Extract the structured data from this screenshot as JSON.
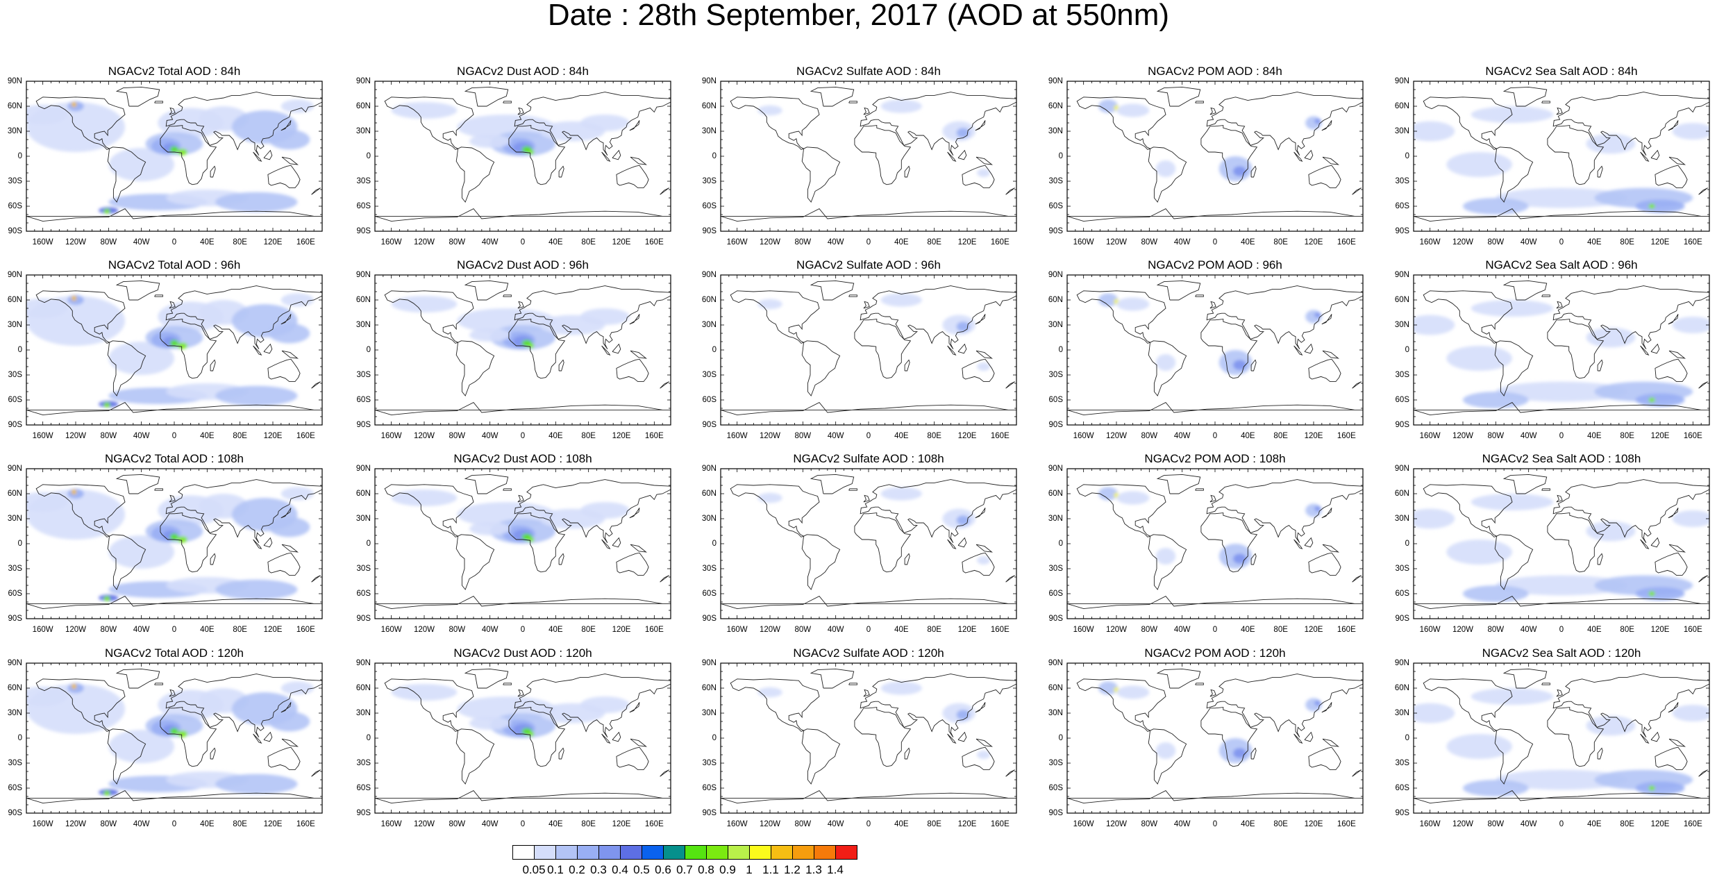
{
  "title": "Date : 28th September, 2017 (AOD at 550nm)",
  "lat_labels": [
    "90N",
    "60N",
    "30N",
    "0",
    "30S",
    "60S",
    "90S"
  ],
  "lon_labels": [
    "160W",
    "120W",
    "80W",
    "40W",
    "0",
    "40E",
    "80E",
    "120E",
    "160E"
  ],
  "panels": [
    {
      "title": "NGACv2 Total AOD : 84h",
      "species": "total"
    },
    {
      "title": "NGACv2 Dust AOD : 84h",
      "species": "dust"
    },
    {
      "title": "NGACv2 Sulfate AOD : 84h",
      "species": "sulfate"
    },
    {
      "title": "NGACv2 POM AOD : 84h",
      "species": "pom"
    },
    {
      "title": "NGACv2 Sea Salt AOD : 84h",
      "species": "seasalt"
    },
    {
      "title": "NGACv2 Total AOD : 96h",
      "species": "total"
    },
    {
      "title": "NGACv2 Dust AOD : 96h",
      "species": "dust"
    },
    {
      "title": "NGACv2 Sulfate AOD : 96h",
      "species": "sulfate"
    },
    {
      "title": "NGACv2 POM AOD : 96h",
      "species": "pom"
    },
    {
      "title": "NGACv2 Sea Salt AOD : 96h",
      "species": "seasalt"
    },
    {
      "title": "NGACv2 Total AOD : 108h",
      "species": "total"
    },
    {
      "title": "NGACv2 Dust AOD : 108h",
      "species": "dust"
    },
    {
      "title": "NGACv2 Sulfate AOD : 108h",
      "species": "sulfate"
    },
    {
      "title": "NGACv2 POM AOD : 108h",
      "species": "pom"
    },
    {
      "title": "NGACv2 Sea Salt AOD : 108h",
      "species": "seasalt"
    },
    {
      "title": "NGACv2 Total AOD : 120h",
      "species": "total"
    },
    {
      "title": "NGACv2 Dust AOD : 120h",
      "species": "dust"
    },
    {
      "title": "NGACv2 Sulfate AOD : 120h",
      "species": "sulfate"
    },
    {
      "title": "NGACv2 POM AOD : 120h",
      "species": "pom"
    },
    {
      "title": "NGACv2 Sea Salt  AOD : 120h",
      "species": "seasalt"
    }
  ],
  "colorbar": {
    "colors": [
      "#ffffff",
      "#d5defb",
      "#b3c4f6",
      "#99aff4",
      "#7f95ee",
      "#5d6fe4",
      "#0a62ee",
      "#06908c",
      "#55e411",
      "#7bea11",
      "#b9f04a",
      "#fbfb1c",
      "#f6be13",
      "#f69d0e",
      "#f67a0a",
      "#f11e16"
    ],
    "labels": [
      "0.05",
      "0.1",
      "0.2",
      "0.3",
      "0.4",
      "0.5",
      "0.6",
      "0.7",
      "0.8",
      "0.9",
      "1",
      "1.1",
      "1.2",
      "1.3",
      "1.4"
    ]
  }
}
